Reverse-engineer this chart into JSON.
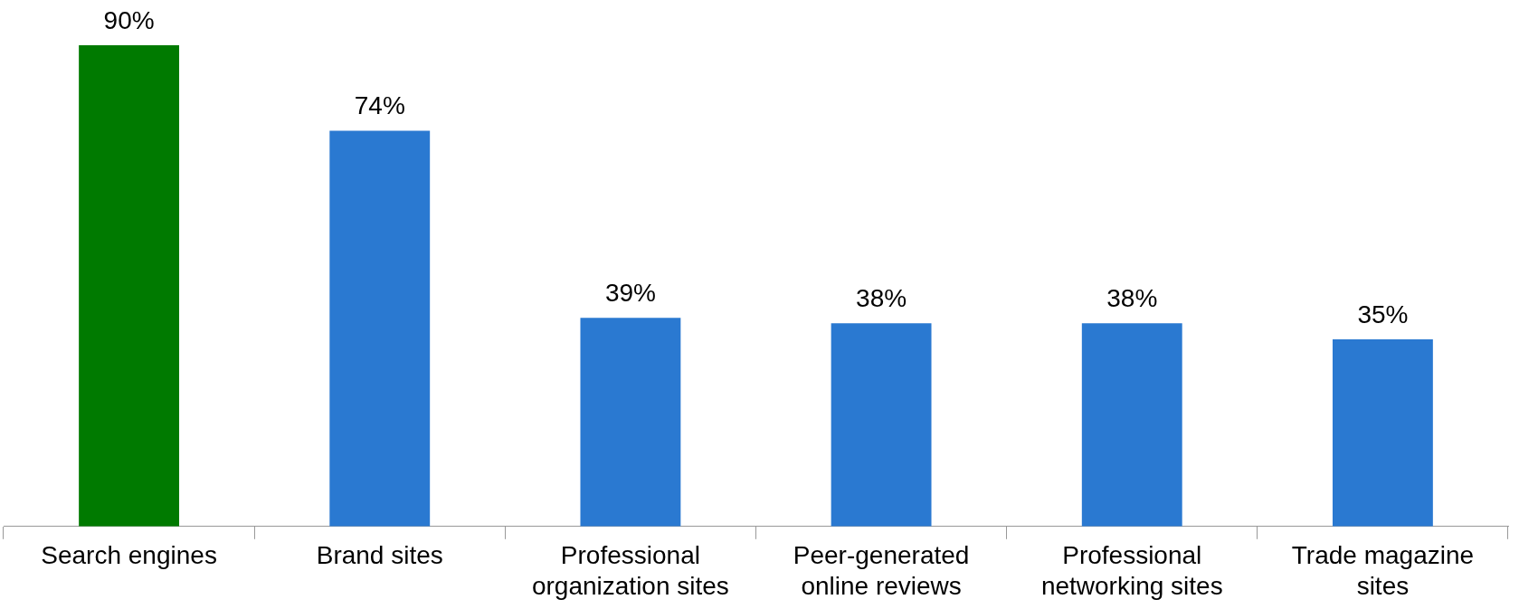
{
  "chart_data": {
    "type": "bar",
    "categories": [
      "Search engines",
      "Brand sites",
      "Professional organization sites",
      "Peer-generated online reviews",
      "Professional networking sites",
      "Trade magazine sites"
    ],
    "values": [
      90,
      74,
      39,
      38,
      38,
      35
    ],
    "colors": [
      "#007a00",
      "#2a79d1",
      "#2a79d1",
      "#2a79d1",
      "#2a79d1",
      "#2a79d1"
    ],
    "value_labels": [
      "90%",
      "74%",
      "39%",
      "38%",
      "38%",
      "35%"
    ],
    "tick_labels": "x",
    "grid": false,
    "legend": false
  }
}
